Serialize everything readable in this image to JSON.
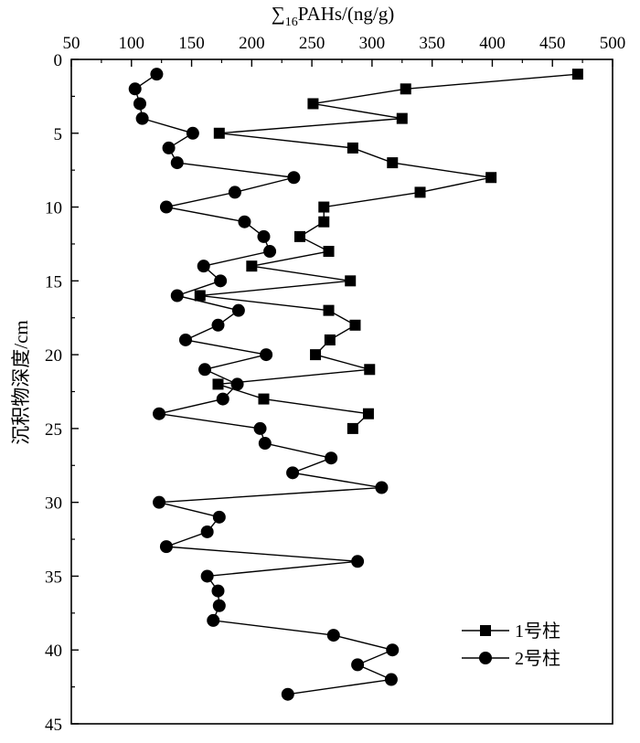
{
  "chart_data": {
    "type": "line",
    "title": "",
    "xlabel": {
      "prefix": "∑",
      "subscript": "16",
      "suffix": "PAHs/(ng/g)"
    },
    "ylabel": "沉积物深度/cm",
    "x_axis_position": "top",
    "y_axis_inverted": true,
    "xlim": [
      50,
      500
    ],
    "ylim": [
      0,
      45
    ],
    "x_ticks": [
      50,
      100,
      150,
      200,
      250,
      300,
      350,
      400,
      450,
      500
    ],
    "y_ticks": [
      0,
      5,
      10,
      15,
      20,
      25,
      30,
      35,
      40,
      45
    ],
    "grid": false,
    "legend_position": "bottom-right",
    "series": [
      {
        "name": "1号柱",
        "marker": "square",
        "color": "#000000",
        "points": [
          {
            "x": 471,
            "y": 1
          },
          {
            "x": 328,
            "y": 2
          },
          {
            "x": 251,
            "y": 3
          },
          {
            "x": 325,
            "y": 4
          },
          {
            "x": 173,
            "y": 5
          },
          {
            "x": 284,
            "y": 6
          },
          {
            "x": 317,
            "y": 7
          },
          {
            "x": 399,
            "y": 8
          },
          {
            "x": 340,
            "y": 9
          },
          {
            "x": 260,
            "y": 10
          },
          {
            "x": 260,
            "y": 11
          },
          {
            "x": 240,
            "y": 12
          },
          {
            "x": 264,
            "y": 13
          },
          {
            "x": 200,
            "y": 14
          },
          {
            "x": 282,
            "y": 15
          },
          {
            "x": 157,
            "y": 16
          },
          {
            "x": 264,
            "y": 17
          },
          {
            "x": 286,
            "y": 18
          },
          {
            "x": 265,
            "y": 19
          },
          {
            "x": 253,
            "y": 20
          },
          {
            "x": 298,
            "y": 21
          },
          {
            "x": 172,
            "y": 22
          },
          {
            "x": 210,
            "y": 23
          },
          {
            "x": 297,
            "y": 24
          },
          {
            "x": 284,
            "y": 25
          }
        ]
      },
      {
        "name": "2号柱",
        "marker": "circle",
        "color": "#000000",
        "points": [
          {
            "x": 121,
            "y": 1
          },
          {
            "x": 103,
            "y": 2
          },
          {
            "x": 107,
            "y": 3
          },
          {
            "x": 109,
            "y": 4
          },
          {
            "x": 151,
            "y": 5
          },
          {
            "x": 131,
            "y": 6
          },
          {
            "x": 138,
            "y": 7
          },
          {
            "x": 235,
            "y": 8
          },
          {
            "x": 186,
            "y": 9
          },
          {
            "x": 129,
            "y": 10
          },
          {
            "x": 194,
            "y": 11
          },
          {
            "x": 210,
            "y": 12
          },
          {
            "x": 215,
            "y": 13
          },
          {
            "x": 160,
            "y": 14
          },
          {
            "x": 174,
            "y": 15
          },
          {
            "x": 138,
            "y": 16
          },
          {
            "x": 189,
            "y": 17
          },
          {
            "x": 172,
            "y": 18
          },
          {
            "x": 145,
            "y": 19
          },
          {
            "x": 212,
            "y": 20
          },
          {
            "x": 161,
            "y": 21
          },
          {
            "x": 188,
            "y": 22
          },
          {
            "x": 176,
            "y": 23
          },
          {
            "x": 123,
            "y": 24
          },
          {
            "x": 207,
            "y": 25
          },
          {
            "x": 211,
            "y": 26
          },
          {
            "x": 266,
            "y": 27
          },
          {
            "x": 234,
            "y": 28
          },
          {
            "x": 308,
            "y": 29
          },
          {
            "x": 123,
            "y": 30
          },
          {
            "x": 173,
            "y": 31
          },
          {
            "x": 163,
            "y": 32
          },
          {
            "x": 129,
            "y": 33
          },
          {
            "x": 288,
            "y": 34
          },
          {
            "x": 163,
            "y": 35
          },
          {
            "x": 172,
            "y": 36
          },
          {
            "x": 173,
            "y": 37
          },
          {
            "x": 168,
            "y": 38
          },
          {
            "x": 268,
            "y": 39
          },
          {
            "x": 317,
            "y": 40
          },
          {
            "x": 288,
            "y": 41
          },
          {
            "x": 316,
            "y": 42
          },
          {
            "x": 230,
            "y": 43
          }
        ]
      }
    ]
  }
}
